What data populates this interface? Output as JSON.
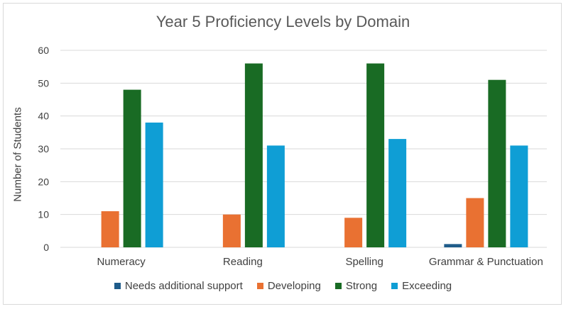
{
  "chart_data": {
    "type": "bar",
    "title": "Year 5 Proficiency Levels by Domain",
    "xlabel": "",
    "ylabel": "Number of Students",
    "ylim": [
      0,
      60
    ],
    "yticks": [
      0,
      10,
      20,
      30,
      40,
      50,
      60
    ],
    "grid": true,
    "legend_position": "bottom",
    "categories": [
      "Numeracy",
      "Reading",
      "Spelling",
      "Grammar & Punctuation"
    ],
    "series": [
      {
        "name": "Needs additional support",
        "color": "#1f5c8a",
        "values": [
          0,
          0,
          0,
          1
        ]
      },
      {
        "name": "Developing",
        "color": "#e97132",
        "values": [
          11,
          10,
          9,
          15
        ]
      },
      {
        "name": "Strong",
        "color": "#196b24",
        "values": [
          48,
          56,
          56,
          51
        ]
      },
      {
        "name": "Exceeding",
        "color": "#0f9ed5",
        "values": [
          38,
          31,
          33,
          31
        ]
      }
    ]
  }
}
